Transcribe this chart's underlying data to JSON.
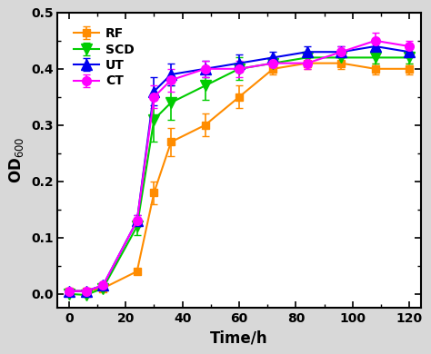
{
  "title": "",
  "xlabel": "Time/h",
  "ylabel": "OD$_{600}$",
  "xlim": [
    -4,
    124
  ],
  "ylim": [
    -0.025,
    0.5
  ],
  "xticks_major": [
    0,
    20,
    40,
    60,
    80,
    100,
    120
  ],
  "xticks_minor": [
    0,
    10,
    20,
    30,
    40,
    50,
    60,
    70,
    80,
    90,
    100,
    110,
    120
  ],
  "yticks": [
    0.0,
    0.1,
    0.2,
    0.3,
    0.4,
    0.5
  ],
  "series": {
    "RF": {
      "color": "#FF8C00",
      "marker": "s",
      "linestyle": "-",
      "x": [
        0,
        6,
        12,
        24,
        30,
        36,
        48,
        60,
        72,
        84,
        96,
        108,
        120
      ],
      "y": [
        0.005,
        0.005,
        0.01,
        0.04,
        0.18,
        0.27,
        0.3,
        0.35,
        0.4,
        0.41,
        0.41,
        0.4,
        0.4
      ],
      "yerr": [
        0.003,
        0.003,
        0.003,
        0.005,
        0.02,
        0.025,
        0.02,
        0.02,
        0.01,
        0.01,
        0.01,
        0.01,
        0.01
      ]
    },
    "SCD": {
      "color": "#00CC00",
      "marker": "v",
      "linestyle": "-",
      "x": [
        0,
        6,
        12,
        24,
        30,
        36,
        48,
        60,
        72,
        84,
        96,
        108,
        120
      ],
      "y": [
        0.0,
        -0.002,
        0.01,
        0.12,
        0.31,
        0.34,
        0.37,
        0.4,
        0.41,
        0.42,
        0.42,
        0.42,
        0.42
      ],
      "yerr": [
        0.003,
        0.003,
        0.003,
        0.015,
        0.04,
        0.03,
        0.025,
        0.02,
        0.01,
        0.01,
        0.01,
        0.01,
        0.01
      ]
    },
    "UT": {
      "color": "#0000EE",
      "marker": "^",
      "linestyle": "-",
      "x": [
        0,
        6,
        12,
        24,
        30,
        36,
        48,
        60,
        72,
        84,
        96,
        108,
        120
      ],
      "y": [
        0.005,
        0.005,
        0.015,
        0.13,
        0.36,
        0.39,
        0.4,
        0.41,
        0.42,
        0.43,
        0.43,
        0.44,
        0.43
      ],
      "yerr": [
        0.003,
        0.003,
        0.003,
        0.01,
        0.025,
        0.02,
        0.015,
        0.015,
        0.01,
        0.01,
        0.01,
        0.01,
        0.01
      ]
    },
    "CT": {
      "color": "#FF00FF",
      "marker": "o",
      "linestyle": "-",
      "x": [
        0,
        6,
        12,
        24,
        30,
        36,
        48,
        60,
        72,
        84,
        96,
        108,
        120
      ],
      "y": [
        0.005,
        0.005,
        0.015,
        0.13,
        0.35,
        0.38,
        0.4,
        0.4,
        0.41,
        0.41,
        0.43,
        0.45,
        0.44
      ],
      "yerr": [
        0.003,
        0.003,
        0.003,
        0.01,
        0.02,
        0.02,
        0.015,
        0.015,
        0.01,
        0.01,
        0.01,
        0.015,
        0.01
      ]
    }
  },
  "legend_order": [
    "RF",
    "SCD",
    "UT",
    "CT"
  ],
  "bg_outer": "#d8d8d8",
  "bg_inner": "#ffffff",
  "marker_size": 6,
  "linewidth": 1.5,
  "capsize": 3,
  "elinewidth": 1.2
}
